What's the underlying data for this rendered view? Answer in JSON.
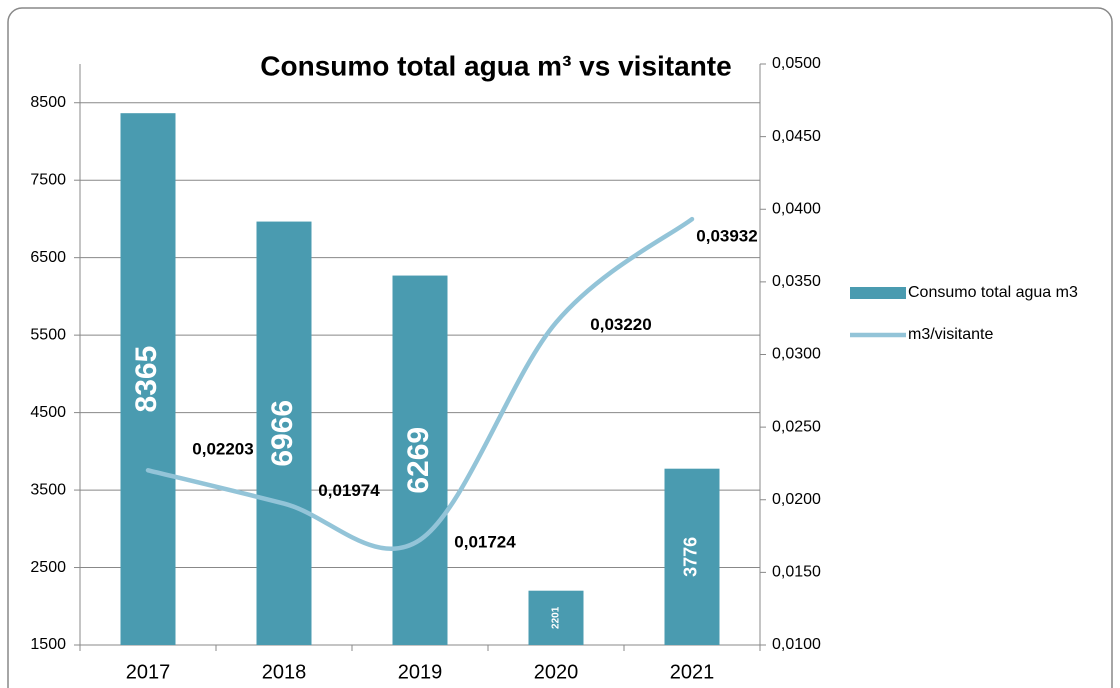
{
  "chart_data": {
    "type": "bar",
    "title": "Consumo total agua m³ vs visitante",
    "categories": [
      "2017",
      "2018",
      "2019",
      "2020",
      "2021"
    ],
    "series": [
      {
        "name": "Consumo total agua m3",
        "type": "bar",
        "color": "#4a9bb0",
        "values": [
          8365,
          6966,
          6269,
          2201,
          3776
        ]
      },
      {
        "name": "m3/visitante",
        "type": "line",
        "axis": "y2",
        "color": "#93c4d8",
        "smooth": true,
        "values": [
          0.02203,
          0.01974,
          0.01724,
          0.0322,
          0.03932
        ],
        "value_labels": [
          "0,02203",
          "0,01974",
          "0,01724",
          "0,03220",
          "0,03932"
        ]
      }
    ],
    "ylim": [
      1500,
      9000
    ],
    "yticks": [
      1500,
      2500,
      3500,
      4500,
      5500,
      6500,
      7500,
      8500
    ],
    "y2lim": [
      0.01,
      0.05
    ],
    "y2ticks": [
      {
        "value": 0.01,
        "label": "0,0100"
      },
      {
        "value": 0.015,
        "label": "0,0150"
      },
      {
        "value": 0.02,
        "label": "0,0200"
      },
      {
        "value": 0.025,
        "label": "0,0250"
      },
      {
        "value": 0.03,
        "label": "0,0300"
      },
      {
        "value": 0.035,
        "label": "0,0350"
      },
      {
        "value": 0.04,
        "label": "0,0400"
      },
      {
        "value": 0.045,
        "label": "0,0450"
      },
      {
        "value": 0.05,
        "label": "0,0500"
      }
    ],
    "grid": true,
    "legend": "right"
  }
}
